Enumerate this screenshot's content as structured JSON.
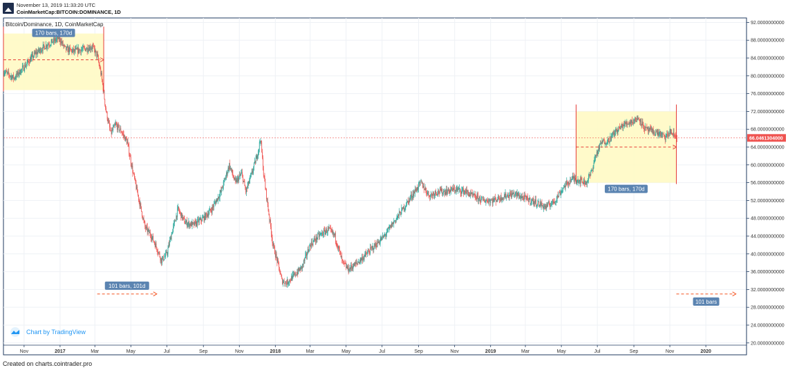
{
  "header": {
    "date_line": "November 13, 2019 11:33:20 UTC",
    "symbol_line": "CoinMarketCap:BITCOIN:DOMINANCE, 1D"
  },
  "footer": {
    "text": "Created on charts.cointrader.pro"
  },
  "watermark": {
    "text": "Chart by TradingView"
  },
  "colors": {
    "up": "#26a69a",
    "down": "#ef5350",
    "box_fill": "#fff9c4",
    "box_line": "#e53935",
    "label_bg": "#5b84b1",
    "price_tag": "#ef5350",
    "dashed": "#f4511e"
  },
  "chart_data": {
    "type": "candlestick",
    "title": "Bitcoin/Dominance, 1D, CoinMarketCap",
    "y_axis": {
      "position": "right",
      "ticks": [
        "92.0000000000",
        "88.0000000000",
        "84.0000000000",
        "80.0000000000",
        "76.0000000000",
        "72.0000000000",
        "68.0000000000",
        "64.0000000000",
        "60.0000000000",
        "56.0000000000",
        "52.0000000000",
        "48.0000000000",
        "44.0000000000",
        "40.0000000000",
        "36.0000000000",
        "32.0000000000",
        "28.0000000000",
        "24.0000000000",
        "20.0000000000"
      ],
      "range": [
        19.5,
        93
      ]
    },
    "x_axis": {
      "ticks": [
        {
          "label": "Nov",
          "bold": false,
          "date": "2016-11-01"
        },
        {
          "label": "2017",
          "bold": true,
          "date": "2017-01-01"
        },
        {
          "label": "Mar",
          "bold": false,
          "date": "2017-03-01"
        },
        {
          "label": "May",
          "bold": false,
          "date": "2017-05-01"
        },
        {
          "label": "Jul",
          "bold": false,
          "date": "2017-07-01"
        },
        {
          "label": "Sep",
          "bold": false,
          "date": "2017-09-01"
        },
        {
          "label": "Nov",
          "bold": false,
          "date": "2017-11-01"
        },
        {
          "label": "2018",
          "bold": true,
          "date": "2018-01-01"
        },
        {
          "label": "Mar",
          "bold": false,
          "date": "2018-03-01"
        },
        {
          "label": "May",
          "bold": false,
          "date": "2018-05-01"
        },
        {
          "label": "Jul",
          "bold": false,
          "date": "2018-07-01"
        },
        {
          "label": "Sep",
          "bold": false,
          "date": "2018-09-01"
        },
        {
          "label": "Nov",
          "bold": false,
          "date": "2018-11-01"
        },
        {
          "label": "2019",
          "bold": true,
          "date": "2019-01-01"
        },
        {
          "label": "Mar",
          "bold": false,
          "date": "2019-03-01"
        },
        {
          "label": "May",
          "bold": false,
          "date": "2019-05-01"
        },
        {
          "label": "Jul",
          "bold": false,
          "date": "2019-07-01"
        },
        {
          "label": "Sep",
          "bold": false,
          "date": "2019-09-01"
        },
        {
          "label": "Nov",
          "bold": false,
          "date": "2019-11-01"
        },
        {
          "label": "2020",
          "bold": true,
          "date": "2020-01-01"
        }
      ],
      "range": [
        "2016-09-27",
        "2020-03-10"
      ]
    },
    "current_price": {
      "label": "66.0461304000",
      "value": 66.05
    },
    "series_close": [
      {
        "date": "2016-09-27",
        "value": 81.0
      },
      {
        "date": "2016-10-15",
        "value": 79.5
      },
      {
        "date": "2016-11-01",
        "value": 82.0
      },
      {
        "date": "2016-11-20",
        "value": 85.0
      },
      {
        "date": "2016-12-10",
        "value": 87.0
      },
      {
        "date": "2016-12-30",
        "value": 88.5
      },
      {
        "date": "2017-01-10",
        "value": 86.0
      },
      {
        "date": "2017-01-25",
        "value": 85.5
      },
      {
        "date": "2017-02-10",
        "value": 86.0
      },
      {
        "date": "2017-02-25",
        "value": 86.5
      },
      {
        "date": "2017-03-05",
        "value": 84.5
      },
      {
        "date": "2017-03-12",
        "value": 80.0
      },
      {
        "date": "2017-03-20",
        "value": 72.0
      },
      {
        "date": "2017-03-28",
        "value": 67.0
      },
      {
        "date": "2017-04-05",
        "value": 69.0
      },
      {
        "date": "2017-04-15",
        "value": 67.5
      },
      {
        "date": "2017-04-25",
        "value": 65.0
      },
      {
        "date": "2017-05-05",
        "value": 58.0
      },
      {
        "date": "2017-05-15",
        "value": 52.0
      },
      {
        "date": "2017-05-25",
        "value": 46.0
      },
      {
        "date": "2017-06-05",
        "value": 44.0
      },
      {
        "date": "2017-06-15",
        "value": 41.0
      },
      {
        "date": "2017-06-22",
        "value": 38.5
      },
      {
        "date": "2017-07-01",
        "value": 40.0
      },
      {
        "date": "2017-07-10",
        "value": 45.0
      },
      {
        "date": "2017-07-20",
        "value": 50.0
      },
      {
        "date": "2017-08-01",
        "value": 47.0
      },
      {
        "date": "2017-08-15",
        "value": 46.5
      },
      {
        "date": "2017-09-01",
        "value": 48.0
      },
      {
        "date": "2017-09-15",
        "value": 50.0
      },
      {
        "date": "2017-10-01",
        "value": 54.0
      },
      {
        "date": "2017-10-15",
        "value": 60.0
      },
      {
        "date": "2017-10-25",
        "value": 56.0
      },
      {
        "date": "2017-11-05",
        "value": 58.0
      },
      {
        "date": "2017-11-12",
        "value": 54.0
      },
      {
        "date": "2017-11-22",
        "value": 58.0
      },
      {
        "date": "2017-12-01",
        "value": 62.0
      },
      {
        "date": "2017-12-07",
        "value": 66.0
      },
      {
        "date": "2017-12-12",
        "value": 58.0
      },
      {
        "date": "2017-12-20",
        "value": 50.0
      },
      {
        "date": "2017-12-28",
        "value": 42.0
      },
      {
        "date": "2018-01-05",
        "value": 38.0
      },
      {
        "date": "2018-01-12",
        "value": 34.0
      },
      {
        "date": "2018-01-20",
        "value": 33.5
      },
      {
        "date": "2018-02-01",
        "value": 35.0
      },
      {
        "date": "2018-02-15",
        "value": 37.0
      },
      {
        "date": "2018-03-01",
        "value": 42.0
      },
      {
        "date": "2018-03-15",
        "value": 44.0
      },
      {
        "date": "2018-04-01",
        "value": 45.5
      },
      {
        "date": "2018-04-12",
        "value": 44.0
      },
      {
        "date": "2018-04-25",
        "value": 38.0
      },
      {
        "date": "2018-05-05",
        "value": 36.5
      },
      {
        "date": "2018-05-20",
        "value": 38.0
      },
      {
        "date": "2018-06-05",
        "value": 40.0
      },
      {
        "date": "2018-06-20",
        "value": 42.0
      },
      {
        "date": "2018-07-05",
        "value": 44.0
      },
      {
        "date": "2018-07-20",
        "value": 47.0
      },
      {
        "date": "2018-08-05",
        "value": 50.0
      },
      {
        "date": "2018-08-20",
        "value": 53.0
      },
      {
        "date": "2018-09-05",
        "value": 56.0
      },
      {
        "date": "2018-09-12",
        "value": 54.5
      },
      {
        "date": "2018-09-20",
        "value": 53.0
      },
      {
        "date": "2018-10-01",
        "value": 54.0
      },
      {
        "date": "2018-10-15",
        "value": 54.0
      },
      {
        "date": "2018-11-01",
        "value": 54.5
      },
      {
        "date": "2018-11-20",
        "value": 54.0
      },
      {
        "date": "2018-12-01",
        "value": 53.0
      },
      {
        "date": "2018-12-20",
        "value": 52.0
      },
      {
        "date": "2019-01-05",
        "value": 52.0
      },
      {
        "date": "2019-01-25",
        "value": 53.0
      },
      {
        "date": "2019-02-10",
        "value": 53.5
      },
      {
        "date": "2019-02-28",
        "value": 52.5
      },
      {
        "date": "2019-03-20",
        "value": 51.5
      },
      {
        "date": "2019-04-05",
        "value": 50.5
      },
      {
        "date": "2019-04-20",
        "value": 52.0
      },
      {
        "date": "2019-05-05",
        "value": 55.0
      },
      {
        "date": "2019-05-20",
        "value": 57.0
      },
      {
        "date": "2019-06-01",
        "value": 56.5
      },
      {
        "date": "2019-06-12",
        "value": 56.0
      },
      {
        "date": "2019-06-20",
        "value": 58.0
      },
      {
        "date": "2019-06-28",
        "value": 62.0
      },
      {
        "date": "2019-07-08",
        "value": 65.0
      },
      {
        "date": "2019-07-20",
        "value": 65.5
      },
      {
        "date": "2019-08-01",
        "value": 67.5
      },
      {
        "date": "2019-08-15",
        "value": 69.0
      },
      {
        "date": "2019-09-01",
        "value": 70.0
      },
      {
        "date": "2019-09-10",
        "value": 70.5
      },
      {
        "date": "2019-09-20",
        "value": 68.0
      },
      {
        "date": "2019-10-01",
        "value": 67.5
      },
      {
        "date": "2019-10-15",
        "value": 67.0
      },
      {
        "date": "2019-10-25",
        "value": 66.0
      },
      {
        "date": "2019-11-01",
        "value": 67.5
      },
      {
        "date": "2019-11-13",
        "value": 66.05
      }
    ],
    "annotations": [
      {
        "kind": "date_price_range",
        "label": "170 bars, 170d",
        "start": "2016-09-27",
        "end": "2017-03-16",
        "top": 89.5,
        "bottom": 76.8,
        "mid": 83.6,
        "label_position": "top"
      },
      {
        "kind": "date_price_range",
        "label": "170 bars, 170d",
        "start": "2019-05-26",
        "end": "2019-11-12",
        "top": 72.0,
        "bottom": 56.0,
        "mid": 64.0,
        "label_position": "bottom"
      },
      {
        "kind": "date_range",
        "label": "101 bars, 101d",
        "start": "2017-03-05",
        "end": "2017-06-14",
        "level": 31.0,
        "label_position": "top"
      },
      {
        "kind": "bars_pattern",
        "label": "101 bars",
        "start": "2019-11-12",
        "end": "2020-02-21",
        "level": 31.0,
        "label_position": "bottom"
      }
    ]
  }
}
